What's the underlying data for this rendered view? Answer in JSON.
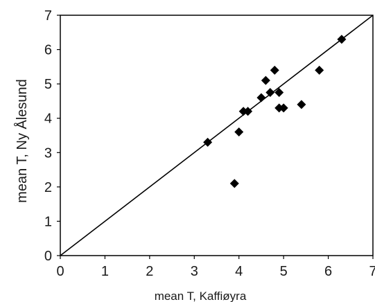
{
  "chart_data": {
    "type": "scatter",
    "xlabel": "mean T, Kaffiøyra",
    "ylabel": "mean T, Ny Ålesund",
    "xlim": [
      0,
      7
    ],
    "ylim": [
      0,
      7
    ],
    "xticks": [
      0,
      1,
      2,
      3,
      4,
      5,
      6,
      7
    ],
    "yticks": [
      0,
      1,
      2,
      3,
      4,
      5,
      6,
      7
    ],
    "grid": false,
    "marker": "diamond",
    "marker_color": "#000000",
    "reference_line": {
      "type": "identity",
      "from": [
        0,
        0
      ],
      "to": [
        7,
        7
      ]
    },
    "points": [
      {
        "x": 3.3,
        "y": 3.3
      },
      {
        "x": 3.9,
        "y": 2.1
      },
      {
        "x": 4.0,
        "y": 3.6
      },
      {
        "x": 4.1,
        "y": 4.2
      },
      {
        "x": 4.2,
        "y": 4.2
      },
      {
        "x": 4.5,
        "y": 4.6
      },
      {
        "x": 4.6,
        "y": 5.1
      },
      {
        "x": 4.7,
        "y": 4.75
      },
      {
        "x": 4.8,
        "y": 5.4
      },
      {
        "x": 4.9,
        "y": 4.75
      },
      {
        "x": 4.9,
        "y": 4.3
      },
      {
        "x": 5.0,
        "y": 4.3
      },
      {
        "x": 5.4,
        "y": 4.4
      },
      {
        "x": 5.8,
        "y": 5.4
      },
      {
        "x": 6.3,
        "y": 6.3
      }
    ]
  }
}
